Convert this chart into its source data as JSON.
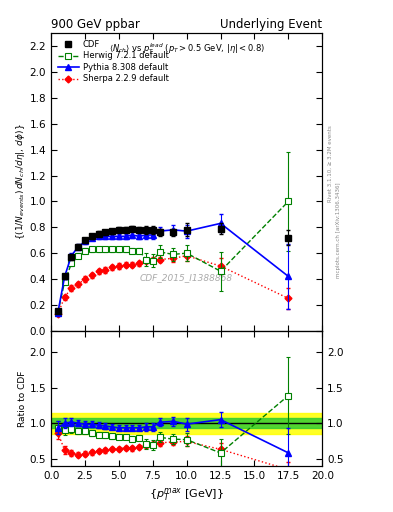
{
  "title_left": "900 GeV ppbar",
  "title_right": "Underlying Event",
  "annotation_main": "$\\langle N_{ch}\\rangle$ vs $p_T^{lead}$ $(p_T > 0.5$ GeV, $|\\eta| < 0.8)$",
  "watermark": "CDF_2015_I1388868",
  "CDF_x": [
    0.5,
    1.0,
    1.5,
    2.0,
    2.5,
    3.0,
    3.5,
    4.0,
    4.5,
    5.0,
    5.5,
    6.0,
    6.5,
    7.0,
    7.5,
    8.0,
    9.0,
    10.0,
    12.5,
    17.5
  ],
  "CDF_y": [
    0.15,
    0.42,
    0.57,
    0.65,
    0.7,
    0.73,
    0.75,
    0.76,
    0.77,
    0.78,
    0.78,
    0.79,
    0.78,
    0.78,
    0.78,
    0.76,
    0.76,
    0.78,
    0.79,
    0.72
  ],
  "CDF_yerr": [
    0.01,
    0.02,
    0.02,
    0.02,
    0.02,
    0.02,
    0.02,
    0.02,
    0.02,
    0.02,
    0.02,
    0.02,
    0.02,
    0.03,
    0.03,
    0.03,
    0.03,
    0.05,
    0.04,
    0.06
  ],
  "Herwig_x": [
    0.5,
    1.0,
    1.5,
    2.0,
    2.5,
    3.0,
    3.5,
    4.0,
    4.5,
    5.0,
    5.5,
    6.0,
    6.5,
    7.0,
    7.5,
    8.0,
    9.0,
    10.0,
    12.5,
    17.5
  ],
  "Herwig_y": [
    0.14,
    0.38,
    0.52,
    0.58,
    0.62,
    0.63,
    0.63,
    0.63,
    0.63,
    0.63,
    0.63,
    0.62,
    0.62,
    0.55,
    0.54,
    0.61,
    0.59,
    0.6,
    0.46,
    1.0
  ],
  "Herwig_yerr": [
    0.01,
    0.02,
    0.02,
    0.02,
    0.02,
    0.02,
    0.02,
    0.02,
    0.02,
    0.02,
    0.02,
    0.02,
    0.02,
    0.05,
    0.05,
    0.05,
    0.05,
    0.06,
    0.15,
    0.38
  ],
  "Pythia_x": [
    0.5,
    1.0,
    1.5,
    2.0,
    2.5,
    3.0,
    3.5,
    4.0,
    4.5,
    5.0,
    5.5,
    6.0,
    6.5,
    7.0,
    7.5,
    8.0,
    9.0,
    10.0,
    12.5,
    17.5
  ],
  "Pythia_y": [
    0.14,
    0.42,
    0.58,
    0.65,
    0.69,
    0.72,
    0.73,
    0.73,
    0.73,
    0.73,
    0.73,
    0.74,
    0.73,
    0.74,
    0.74,
    0.77,
    0.78,
    0.77,
    0.83,
    0.42
  ],
  "Pythia_yerr": [
    0.01,
    0.02,
    0.02,
    0.02,
    0.02,
    0.02,
    0.02,
    0.02,
    0.02,
    0.02,
    0.02,
    0.02,
    0.02,
    0.03,
    0.03,
    0.03,
    0.04,
    0.05,
    0.07,
    0.25
  ],
  "Sherpa_x": [
    0.5,
    1.0,
    1.5,
    2.0,
    2.5,
    3.0,
    3.5,
    4.0,
    4.5,
    5.0,
    5.5,
    6.0,
    6.5,
    7.0,
    7.5,
    8.0,
    9.0,
    10.0,
    12.5,
    17.5
  ],
  "Sherpa_y": [
    0.13,
    0.26,
    0.33,
    0.36,
    0.4,
    0.43,
    0.46,
    0.47,
    0.49,
    0.5,
    0.51,
    0.51,
    0.52,
    0.54,
    0.55,
    0.55,
    0.56,
    0.58,
    0.5,
    0.25
  ],
  "Sherpa_yerr": [
    0.01,
    0.02,
    0.02,
    0.02,
    0.02,
    0.02,
    0.02,
    0.02,
    0.02,
    0.02,
    0.02,
    0.02,
    0.02,
    0.02,
    0.02,
    0.02,
    0.03,
    0.04,
    0.06,
    0.08
  ],
  "ylim_main": [
    0.0,
    2.3
  ],
  "ylim_ratio": [
    0.4,
    2.3
  ],
  "xlim": [
    0.0,
    20.0
  ],
  "bg_color": "#ffffff",
  "panel_bg": "#ffffff",
  "cdf_band_yellow": 0.15,
  "cdf_band_green": 0.07
}
